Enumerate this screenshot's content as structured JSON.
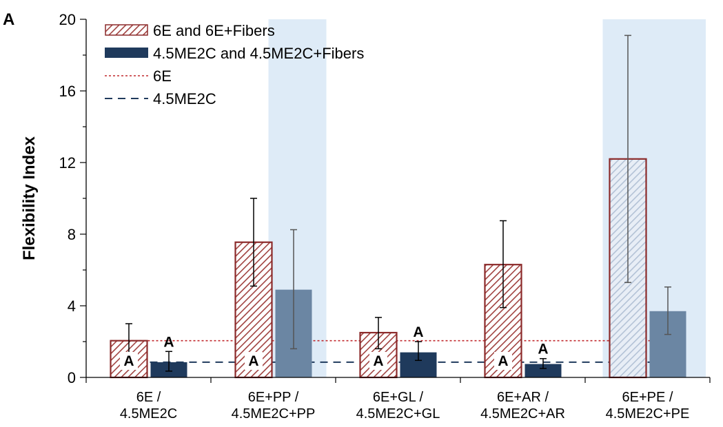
{
  "chart_data": {
    "type": "bar",
    "panel_label": "A",
    "ylabel": "Flexibility Index",
    "xlabel": "",
    "ylim": [
      0,
      20
    ],
    "yticks": [
      "0",
      "4",
      "8",
      "12",
      "16",
      "20"
    ],
    "categories": [
      [
        "6E /",
        "4.5ME2C"
      ],
      [
        "6E+PP /",
        "4.5ME2C+PP"
      ],
      [
        "6E+GL /",
        "4.5ME2C+GL"
      ],
      [
        "6E+AR /",
        "4.5ME2C+AR"
      ],
      [
        "6E+PE /",
        "4.5ME2C+PE"
      ]
    ],
    "series": [
      {
        "name": "6E and 6E+Fibers",
        "values": [
          2.05,
          7.55,
          2.5,
          6.3,
          12.2
        ],
        "error_low": [
          1.0,
          5.1,
          1.6,
          3.9,
          5.3
        ],
        "error_high": [
          3.0,
          10.0,
          3.35,
          8.75,
          19.1
        ],
        "color": "#8b2a2a",
        "pattern": "diagonal-hatch"
      },
      {
        "name": "4.5ME2C and 4.5ME2C+Fibers",
        "values": [
          0.85,
          4.9,
          1.4,
          0.75,
          3.7
        ],
        "error_low": [
          0.35,
          1.6,
          0.95,
          0.5,
          2.4
        ],
        "error_high": [
          1.45,
          8.25,
          2.0,
          1.05,
          5.05
        ],
        "color": "#1f3a5c"
      }
    ],
    "reference_lines": [
      {
        "name": "6E",
        "value": 2.05,
        "style": "dotted",
        "color": "#c0282d"
      },
      {
        "name": "4.5ME2C",
        "value": 0.85,
        "style": "dashed",
        "color": "#1f3a5c"
      }
    ],
    "highlighted_categories": [
      1,
      4
    ],
    "highlight_color": "#deebf7",
    "annotations": [
      {
        "text": "A",
        "category": 0,
        "series": 0
      },
      {
        "text": "A",
        "category": 0,
        "series": 1
      },
      {
        "text": "A",
        "category": 1,
        "series": 0
      },
      {
        "text": "A",
        "category": 2,
        "series": 0
      },
      {
        "text": "A",
        "category": 2,
        "series": 1
      },
      {
        "text": "A",
        "category": 3,
        "series": 0
      },
      {
        "text": "A",
        "category": 3,
        "series": 1
      }
    ],
    "legend_position": "top-left",
    "grid": false
  }
}
